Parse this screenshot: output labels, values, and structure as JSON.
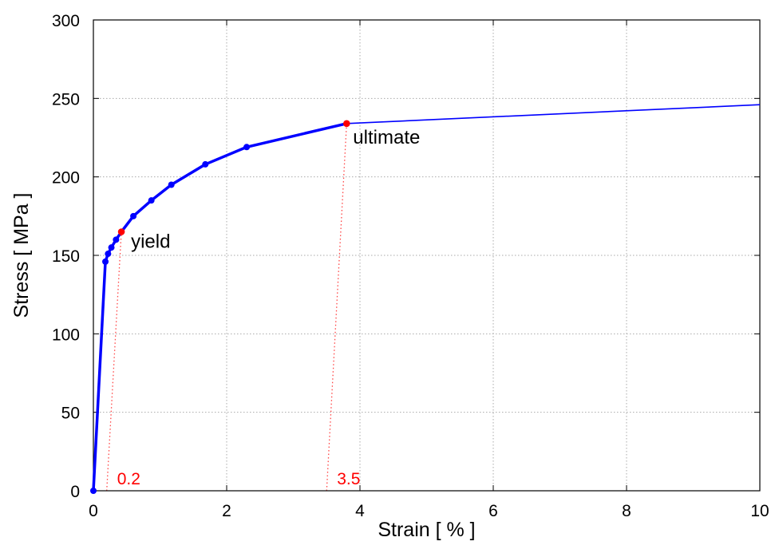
{
  "chart_data": {
    "type": "line",
    "title": "",
    "xlabel": "Strain [ % ]",
    "ylabel": "Stress [ MPa ]",
    "xlim": [
      0,
      10
    ],
    "ylim": [
      0,
      300
    ],
    "xticks": [
      0,
      2,
      4,
      6,
      8,
      10
    ],
    "yticks": [
      0,
      50,
      100,
      150,
      200,
      250,
      300
    ],
    "xtick_labels": [
      "0",
      "2",
      "4",
      "6",
      "8",
      "10"
    ],
    "ytick_labels": [
      "0",
      "50",
      "100",
      "150",
      "200",
      "250",
      "300"
    ],
    "grid": true,
    "colors": {
      "curve": "#0000ff",
      "marker": "#0000ff",
      "highlight": "#ff0000",
      "grid": "#aaaaaa",
      "offset_line": "#ff4444"
    },
    "series": [
      {
        "style": "thick-with-markers",
        "points": [
          [
            0,
            0
          ],
          [
            0.18,
            146
          ],
          [
            0.22,
            151
          ],
          [
            0.27,
            155
          ],
          [
            0.34,
            160
          ],
          [
            0.42,
            165
          ],
          [
            0.6,
            175
          ],
          [
            0.87,
            185
          ],
          [
            1.17,
            195
          ],
          [
            1.68,
            208
          ],
          [
            2.3,
            219
          ],
          [
            3.8,
            234
          ]
        ]
      },
      {
        "style": "thin",
        "points": [
          [
            3.8,
            234
          ],
          [
            10,
            246
          ]
        ]
      }
    ],
    "annotations": [
      {
        "text": "yield",
        "x": 0.42,
        "y": 165
      },
      {
        "text": "ultimate",
        "x": 3.8,
        "y": 234
      }
    ],
    "offset_lines": [
      {
        "label": "0.2",
        "x0": 0.2,
        "x1": 0.42,
        "y1": 165
      },
      {
        "label": "3.5",
        "x0": 3.5,
        "x1": 3.8,
        "y1": 234
      }
    ]
  }
}
